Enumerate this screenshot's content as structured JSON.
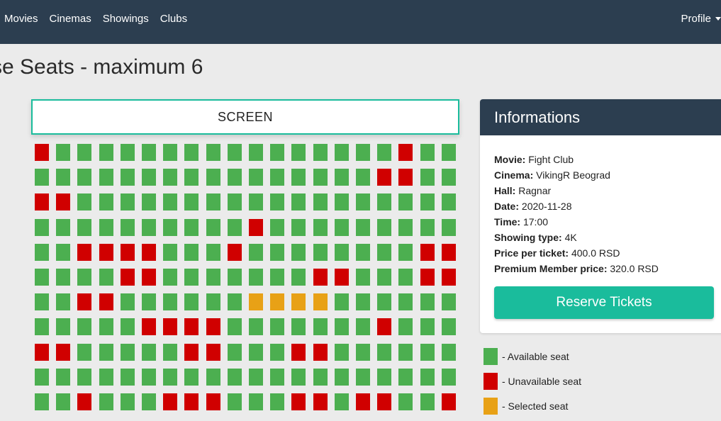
{
  "nav": {
    "links": [
      "Movies",
      "Cinemas",
      "Showings",
      "Clubs"
    ],
    "profile": "Profile"
  },
  "page_title": "se Seats - maximum 6",
  "screen_label": "SCREEN",
  "colors": {
    "available": "#4caf50",
    "unavailable": "#d00000",
    "selected": "#e8a116",
    "accent": "#1abc9c",
    "navbar": "#2c3e50"
  },
  "seats": [
    "UAAAAAAAAAAAAAAAAUAA",
    "AAAAAAAAAAAAAAAAUUAA",
    "UUAAAAAAAAAAAAAAAAAA",
    "AAAAAAAAAAUAAAAAAAAA",
    "AAUUUUAAAUAAAAAAAAUU",
    "AAAAUUAAAAAAAUUAAAUU",
    "AAUUAAAAAASSSSAAAAAA",
    "AAAAAUUUUAAAAAAAUAAA",
    "UUAAAAAUUAAAUUAAAAAA",
    "AAAAAAAAAAAAAAAAAAAA",
    "AAUAAAUUUAAAUUAUUAAU"
  ],
  "info": {
    "title": "Informations",
    "rows": [
      {
        "label": "Movie:",
        "value": "Fight Club"
      },
      {
        "label": "Cinema:",
        "value": "VikingR Beograd"
      },
      {
        "label": "Hall:",
        "value": "Ragnar"
      },
      {
        "label": "Date:",
        "value": "2020-11-28"
      },
      {
        "label": "Time:",
        "value": "17:00"
      },
      {
        "label": "Showing type:",
        "value": "4K"
      },
      {
        "label": "Price per ticket:",
        "value": "400.0 RSD"
      },
      {
        "label": "Premium Member price:",
        "value": "320.0 RSD"
      }
    ],
    "button": "Reserve Tickets"
  },
  "legend": [
    {
      "status": "available",
      "label": "- Available seat"
    },
    {
      "status": "unavailable",
      "label": "- Unavailable seat"
    },
    {
      "status": "selected",
      "label": "- Selected seat"
    }
  ]
}
